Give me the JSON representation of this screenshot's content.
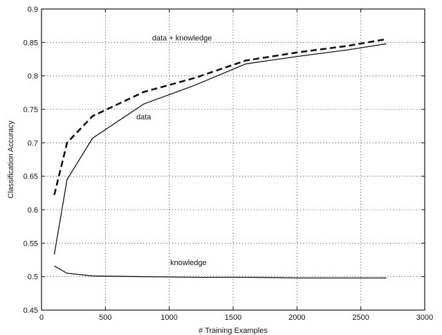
{
  "chart_data": {
    "type": "line",
    "title": "",
    "xlabel": "# Training Examples",
    "ylabel": "Classification Accuracy",
    "xlim": [
      0,
      3000
    ],
    "ylim": [
      0.45,
      0.9
    ],
    "xticks": [
      0,
      500,
      1000,
      1500,
      2000,
      2500,
      3000
    ],
    "xtick_labels": [
      "0",
      "500",
      "1000",
      "1500",
      "2000",
      "2500",
      "3000"
    ],
    "yticks": [
      0.45,
      0.5,
      0.55,
      0.6,
      0.65,
      0.7,
      0.75,
      0.8,
      0.85,
      0.9
    ],
    "ytick_labels": [
      "0.45",
      "0.5",
      "0.55",
      "0.6",
      "0.65",
      "0.7",
      "0.75",
      "0.8",
      "0.85",
      "0.9"
    ],
    "grid": true,
    "series": [
      {
        "name": "data + knowledge",
        "style": "dashed",
        "color": "#111111",
        "x": [
          100,
          200,
          400,
          800,
          1200,
          1600,
          2000,
          2400,
          2700
        ],
        "y": [
          0.622,
          0.7,
          0.74,
          0.776,
          0.797,
          0.823,
          0.835,
          0.845,
          0.855
        ]
      },
      {
        "name": "data",
        "style": "solid",
        "color": "#111111",
        "x": [
          100,
          200,
          400,
          800,
          1200,
          1600,
          2000,
          2400,
          2700
        ],
        "y": [
          0.533,
          0.645,
          0.707,
          0.758,
          0.786,
          0.818,
          0.829,
          0.839,
          0.848
        ]
      },
      {
        "name": "knowledge",
        "style": "solid",
        "color": "#111111",
        "x": [
          100,
          200,
          400,
          800,
          1200,
          1600,
          2000,
          2400,
          2700
        ],
        "y": [
          0.516,
          0.505,
          0.501,
          0.5,
          0.499,
          0.499,
          0.498,
          0.498,
          0.498
        ]
      }
    ],
    "annotations": [
      {
        "text": "data + knowledge",
        "x": 1100,
        "y": 0.853
      },
      {
        "text": "data",
        "x": 800,
        "y": 0.735
      },
      {
        "text": "knowledge",
        "x": 1150,
        "y": 0.517
      }
    ]
  }
}
